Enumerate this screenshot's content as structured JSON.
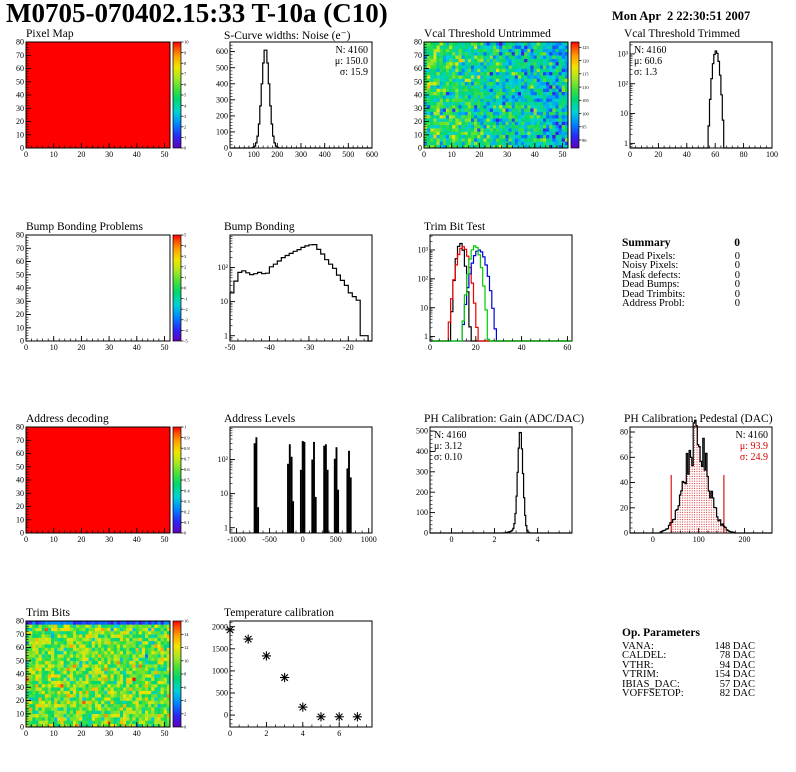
{
  "header": {
    "title": "M0705-070402.15:33 T-10a (C10)",
    "timestamp": "Mon Apr  2 22:30:51 2007"
  },
  "summary": {
    "title": "Summary",
    "total": "0",
    "rows": [
      {
        "label": "Dead Pixels:",
        "value": "0"
      },
      {
        "label": "Noisy Pixels:",
        "value": "0"
      },
      {
        "label": "Mask defects:",
        "value": "0"
      },
      {
        "label": "Dead Bumps:",
        "value": "0"
      },
      {
        "label": "Dead Trimbits:",
        "value": "0"
      },
      {
        "label": "Address Probl:",
        "value": "0"
      }
    ]
  },
  "op_parameters": {
    "title": "Op. Parameters",
    "rows": [
      {
        "label": "VANA:",
        "value": "148 DAC"
      },
      {
        "label": "CALDEL:",
        "value": "78 DAC"
      },
      {
        "label": "VTHR:",
        "value": "94 DAC"
      },
      {
        "label": "VTRIM:",
        "value": "154 DAC"
      },
      {
        "label": "IBIAS_DAC:",
        "value": "57 DAC"
      },
      {
        "label": "VOFFSETOP:",
        "value": "82 DAC"
      }
    ]
  },
  "chart_data": [
    {
      "id": "pixel-map",
      "title": "Pixel Map",
      "type": "heatmap",
      "xlim": [
        0,
        52
      ],
      "xticks": [
        0,
        10,
        20,
        30,
        40,
        50
      ],
      "xminor": 2,
      "ylim": [
        0,
        80
      ],
      "yticks": [
        0,
        10,
        20,
        30,
        40,
        50,
        60,
        70,
        80
      ],
      "yminor": 2,
      "fill": {
        "mode": "uniform",
        "value": 10
      },
      "colorbar": {
        "min": 0,
        "max": 10,
        "ticks": [
          [
            0,
            "0"
          ],
          [
            1,
            "1"
          ],
          [
            2,
            "2"
          ],
          [
            3,
            "3"
          ],
          [
            4,
            "4"
          ],
          [
            5,
            "5"
          ],
          [
            6,
            "6"
          ],
          [
            7,
            "7"
          ],
          [
            8,
            "8"
          ],
          [
            9,
            "9"
          ],
          [
            10,
            "10"
          ]
        ]
      }
    },
    {
      "id": "scurve-noise",
      "title": "S-Curve widths: Noise (e⁻)",
      "type": "hist",
      "xlim": [
        0,
        600
      ],
      "xticks": [
        0,
        100,
        200,
        300,
        400,
        500,
        600
      ],
      "ylim": [
        0,
        660
      ],
      "yticks": [
        0,
        100,
        200,
        300,
        400,
        500,
        600
      ],
      "binw": 6,
      "gauss": [
        {
          "mu": 150,
          "sigma": 16,
          "peak": 620
        }
      ],
      "stats": [
        {
          "text": "N: 4160",
          "color": "#000000"
        },
        {
          "text": "μ: 150.0",
          "color": "#000000"
        },
        {
          "text": "σ: 15.9",
          "color": "#000000"
        }
      ],
      "stats_side": "right"
    },
    {
      "id": "vcal-threshold-untrimmed",
      "title": "Vcal Threshold Untrimmed",
      "type": "heatmap",
      "xlim": [
        0,
        52
      ],
      "xticks": [
        0,
        10,
        20,
        30,
        40,
        50
      ],
      "xminor": 2,
      "ylim": [
        0,
        80
      ],
      "yticks": [
        0,
        10,
        20,
        30,
        40,
        50,
        60,
        70,
        80
      ],
      "yminor": 2,
      "fill": {
        "mode": "noise",
        "mean": 107,
        "sd": 5,
        "trend": -7,
        "seed": 424242
      },
      "colorbar": {
        "min": 87,
        "max": 127,
        "ticks": [
          [
            90,
            "90"
          ],
          [
            95,
            "95"
          ],
          [
            100,
            "100"
          ],
          [
            105,
            "105"
          ],
          [
            110,
            "110"
          ],
          [
            115,
            "115"
          ],
          [
            120,
            "120"
          ],
          [
            125,
            "125"
          ]
        ]
      }
    },
    {
      "id": "vcal-threshold-trimmed",
      "title": "Vcal Threshold Trimmed",
      "type": "hist",
      "ylog": true,
      "xlim": [
        0,
        100
      ],
      "xticks": [
        0,
        20,
        40,
        60,
        80,
        100
      ],
      "ylim": [
        0.7,
        2500
      ],
      "binw": 1,
      "gauss": [
        {
          "mu": 60.6,
          "sigma": 1.5,
          "peak": 1250
        }
      ],
      "stats": [
        {
          "text": "N: 4160",
          "color": "#000000"
        },
        {
          "text": "μ: 60.6",
          "color": "#000000"
        },
        {
          "text": "σ: 1.3",
          "color": "#000000"
        }
      ],
      "stats_side": "left"
    },
    {
      "id": "bump-bonding-problems",
      "title": "Bump Bonding Problems",
      "type": "heatmap",
      "xlim": [
        0,
        52
      ],
      "xticks": [
        0,
        10,
        20,
        30,
        40,
        50
      ],
      "xminor": 2,
      "ylim": [
        0,
        80
      ],
      "yticks": [
        0,
        10,
        20,
        30,
        40,
        50,
        60,
        70,
        80
      ],
      "yminor": 2,
      "fill": {
        "mode": "empty"
      },
      "colorbar": {
        "min": -5,
        "max": 5,
        "ticks": [
          [
            -5,
            "-5"
          ],
          [
            -4,
            "-4"
          ],
          [
            -3,
            "-3"
          ],
          [
            -2,
            "-2"
          ],
          [
            -1,
            "-1"
          ],
          [
            0,
            "0"
          ],
          [
            1,
            "1"
          ],
          [
            2,
            "2"
          ],
          [
            3,
            "3"
          ],
          [
            4,
            "4"
          ],
          [
            5,
            "5"
          ]
        ]
      }
    },
    {
      "id": "bump-bonding",
      "title": "Bump Bonding",
      "type": "hist-bins",
      "ylog": true,
      "xlim": [
        -50,
        -14
      ],
      "xticks": [
        -50,
        -40,
        -30,
        -20
      ],
      "xminor": 2,
      "ylim": [
        0.7,
        900
      ],
      "x0": -50,
      "binw": 1,
      "values": [
        18,
        40,
        72,
        80,
        70,
        62,
        66,
        72,
        66,
        68,
        105,
        125,
        155,
        195,
        225,
        260,
        300,
        335,
        390,
        430,
        465,
        470,
        340,
        250,
        170,
        125,
        95,
        60,
        42,
        30,
        18,
        14,
        11,
        1,
        1,
        0
      ]
    },
    {
      "id": "trim-bit-test",
      "title": "Trim Bit Test",
      "type": "hist-multi",
      "ylog": true,
      "xlim": [
        0,
        62
      ],
      "xticks": [
        0,
        20,
        40,
        60
      ],
      "xminor": 4,
      "ylim": [
        0.7,
        3300
      ],
      "binw": 1,
      "series": [
        {
          "color": "#000000",
          "mu": 13.3,
          "sigma": 1.15,
          "peak": 1700
        },
        {
          "color": "#ee0000",
          "mu": 14.4,
          "sigma": 1.7,
          "peak": 1300
        },
        {
          "color": "#0000dd",
          "mu": 21.4,
          "sigma": 2.0,
          "peak": 1000
        },
        {
          "color": "#00cc00",
          "mu": 19.7,
          "sigma": 1.5,
          "peak": 1400
        }
      ]
    },
    {
      "id": "address-decoding",
      "title": "Address decoding",
      "type": "heatmap",
      "xlim": [
        0,
        52
      ],
      "xticks": [
        0,
        10,
        20,
        30,
        40,
        50
      ],
      "xminor": 2,
      "ylim": [
        0,
        80
      ],
      "yticks": [
        0,
        10,
        20,
        30,
        40,
        50,
        60,
        70,
        80
      ],
      "yminor": 2,
      "fill": {
        "mode": "uniform",
        "value": 1
      },
      "colorbar": {
        "min": 0,
        "max": 1,
        "ticks": [
          [
            0,
            "0"
          ],
          [
            0.1,
            "0.1"
          ],
          [
            0.2,
            "0.2"
          ],
          [
            0.3,
            "0.3"
          ],
          [
            0.4,
            "0.4"
          ],
          [
            0.5,
            "0.5"
          ],
          [
            0.6,
            "0.6"
          ],
          [
            0.7,
            "0.7"
          ],
          [
            0.8,
            "0.8"
          ],
          [
            0.9,
            "0.9"
          ],
          [
            1,
            "1"
          ]
        ]
      }
    },
    {
      "id": "address-levels",
      "title": "Address Levels",
      "type": "spikes",
      "ylog": true,
      "xlim": [
        -1100,
        1050
      ],
      "xticks": [
        -1000,
        -500,
        0,
        500,
        1000
      ],
      "xminor": 100,
      "ylim": [
        0.7,
        900
      ],
      "bars": [
        [
          -728,
          300
        ],
        [
          -700,
          450
        ],
        [
          -674,
          4
        ],
        [
          -222,
          75
        ],
        [
          -195,
          280
        ],
        [
          -168,
          120
        ],
        [
          -144,
          6
        ],
        [
          -26,
          50
        ],
        [
          0,
          350
        ],
        [
          26,
          330
        ],
        [
          146,
          100
        ],
        [
          172,
          330
        ],
        [
          197,
          8
        ],
        [
          326,
          255
        ],
        [
          352,
          280
        ],
        [
          377,
          50
        ],
        [
          487,
          105
        ],
        [
          512,
          230
        ],
        [
          537,
          13
        ],
        [
          677,
          55
        ],
        [
          702,
          180
        ],
        [
          727,
          30
        ]
      ]
    },
    {
      "id": "ph-gain",
      "title": "PH Calibration: Gain (ADC/DAC)",
      "type": "hist",
      "xlim": [
        -1,
        5.6
      ],
      "xticks": [
        0,
        2,
        4
      ],
      "xminor": 0.5,
      "ylim": [
        0,
        520
      ],
      "yticks": [
        0,
        100,
        200,
        300,
        400,
        500
      ],
      "binw": 0.05,
      "gauss": [
        {
          "mu": 3.2,
          "sigma": 0.12,
          "peak": 500
        },
        {
          "mu": 2.9,
          "sigma": 0.2,
          "peak": 10
        }
      ],
      "stats": [
        {
          "text": "N: 4160",
          "color": "#000000"
        },
        {
          "text": "μ: 3.12",
          "color": "#000000"
        },
        {
          "text": "σ: 0.10",
          "color": "#000000"
        }
      ],
      "stats_side": "left"
    },
    {
      "id": "ph-pedestal",
      "title": "PH Calibration: Pedestal (DAC)",
      "type": "hist",
      "xlim": [
        -50,
        260
      ],
      "xticks": [
        0,
        100,
        200
      ],
      "xminor": 20,
      "ylim": [
        0,
        84
      ],
      "yticks": [
        0,
        20,
        40,
        60,
        80
      ],
      "binw": 3,
      "gauss": [
        {
          "mu": 95,
          "sigma": 26,
          "peak": 72
        }
      ],
      "jitter": 0.25,
      "seed": 1234,
      "fill_between": [
        40,
        155
      ],
      "fill_color": "#d40000",
      "vlines": [
        {
          "x": 40,
          "to": 46
        },
        {
          "x": 155,
          "to": 46
        }
      ],
      "stats": [
        {
          "text": "N: 4160",
          "color": "#000000"
        },
        {
          "text": "μ: 93.9",
          "color": "#d40000"
        },
        {
          "text": "σ: 24.9",
          "color": "#d40000"
        }
      ],
      "stats_side": "right"
    },
    {
      "id": "trim-bits",
      "title": "Trim Bits",
      "type": "heatmap",
      "xlim": [
        0,
        52
      ],
      "xticks": [
        0,
        10,
        20,
        30,
        40,
        50
      ],
      "xminor": 2,
      "ylim": [
        0,
        80
      ],
      "yticks": [
        0,
        10,
        20,
        30,
        40,
        50,
        60,
        70,
        80
      ],
      "yminor": 2,
      "fill": {
        "mode": "noise",
        "mean": 9.4,
        "sd": 2.0,
        "seed": 777,
        "top_low": true
      },
      "colorbar": {
        "min": 0,
        "max": 16,
        "ticks": [
          [
            0,
            "0"
          ],
          [
            2,
            "2"
          ],
          [
            4,
            "4"
          ],
          [
            6,
            "6"
          ],
          [
            8,
            "8"
          ],
          [
            10,
            "10"
          ],
          [
            12,
            "12"
          ],
          [
            14,
            "14"
          ],
          [
            16,
            "16"
          ]
        ]
      }
    },
    {
      "id": "temperature-calibration",
      "title": "Temperature calibration",
      "type": "scatter",
      "xlim": [
        0,
        7.8
      ],
      "xticks": [
        0,
        2,
        4,
        6
      ],
      "xminor": 0.5,
      "ylim": [
        -270,
        2130
      ],
      "yticks": [
        0,
        500,
        1000,
        1500,
        2000
      ],
      "yminor": 100,
      "points": [
        [
          0,
          1930
        ],
        [
          1,
          1720
        ],
        [
          2,
          1340
        ],
        [
          3,
          850
        ],
        [
          4,
          180
        ],
        [
          5,
          -40
        ],
        [
          6,
          -40
        ],
        [
          7,
          -40
        ]
      ],
      "marker": "asterisk"
    }
  ]
}
